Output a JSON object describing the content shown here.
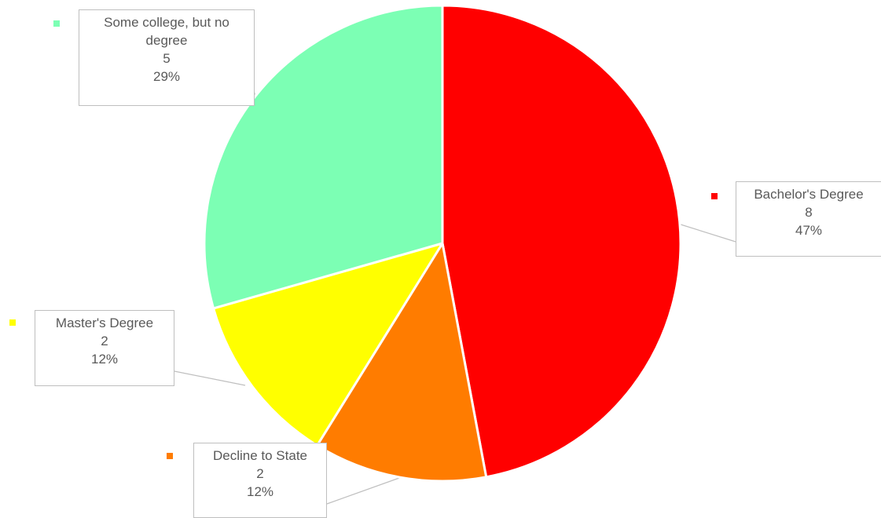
{
  "chart_data": {
    "type": "pie",
    "title": "",
    "colors": {
      "slice_border": "#ffffff",
      "leader_line": "#bfbfbf",
      "label_border": "#bfbfbf",
      "label_text": "#595959"
    },
    "slices": [
      {
        "label": "Bachelor's Degree",
        "value": 8,
        "percent": "47%",
        "color": "#ff0000"
      },
      {
        "label": "Decline to State",
        "value": 2,
        "percent": "12%",
        "color": "#ff7c00"
      },
      {
        "label": "Master's Degree",
        "value": 2,
        "percent": "12%",
        "color": "#ffff00"
      },
      {
        "label": "Some college, but no degree",
        "value": 5,
        "percent": "29%",
        "color": "#7cffb4"
      }
    ]
  }
}
